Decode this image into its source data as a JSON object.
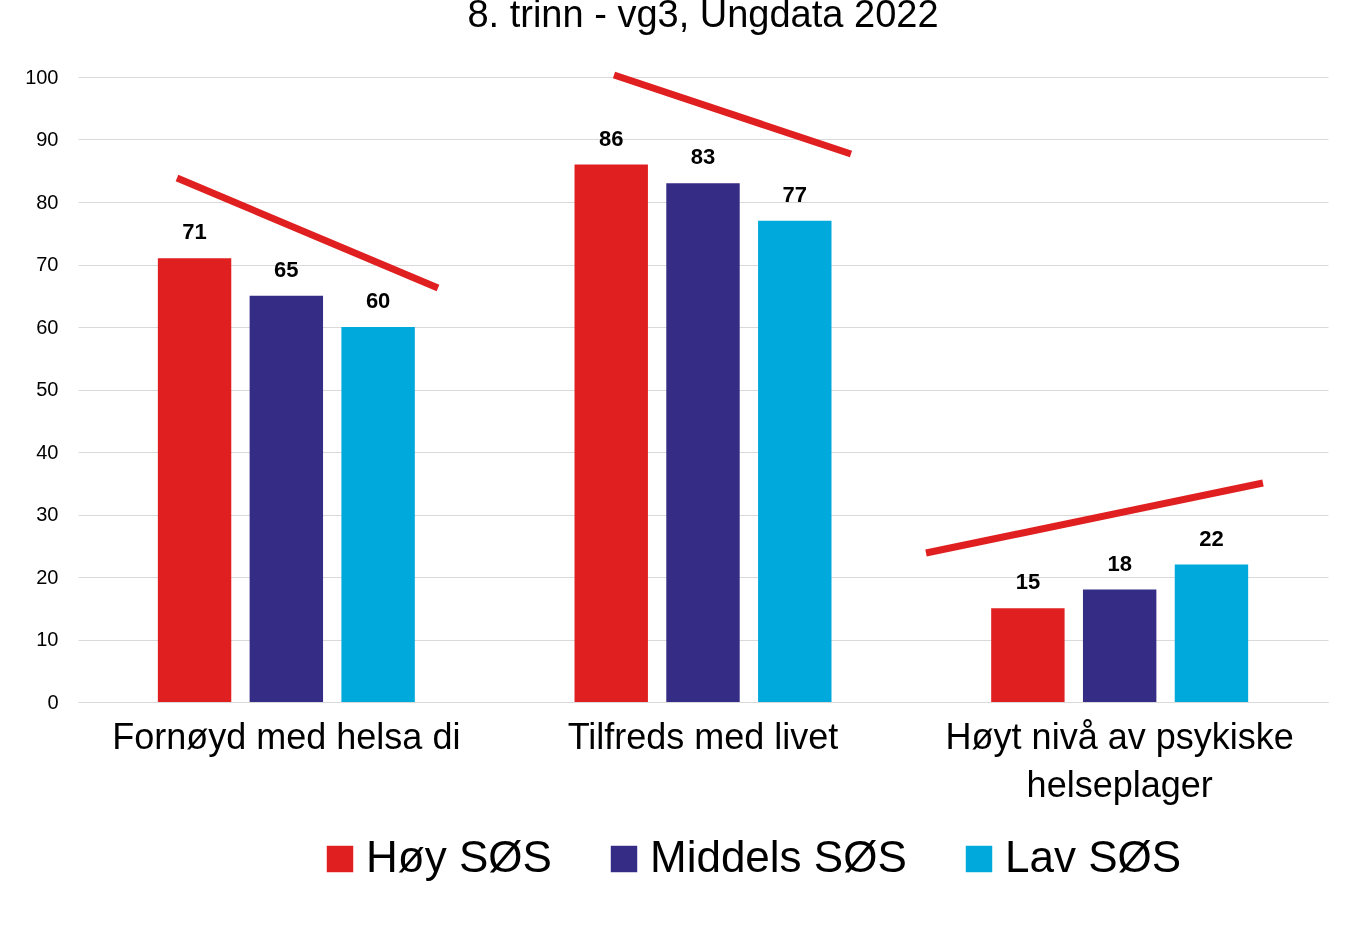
{
  "chart_data": {
    "type": "bar",
    "title": "8. trinn - vg3, Ungdata 2022",
    "categories": [
      "Fornøyd med helsa di",
      "Tilfreds med livet",
      "Høyt nivå av psykiske helseplager"
    ],
    "series": [
      {
        "name": "Høy SØS",
        "color": "#e02020",
        "values": [
          71,
          86,
          15
        ]
      },
      {
        "name": "Middels SØS",
        "color": "#352c85",
        "values": [
          65,
          83,
          18
        ]
      },
      {
        "name": "Lav SØS",
        "color": "#00a9db",
        "values": [
          60,
          77,
          22
        ]
      }
    ],
    "ylim": [
      0,
      100
    ],
    "yticks": [
      0,
      10,
      20,
      30,
      40,
      50,
      60,
      70,
      80,
      90,
      100
    ],
    "grid": "y",
    "legend": "bottom",
    "data_labels": true
  }
}
